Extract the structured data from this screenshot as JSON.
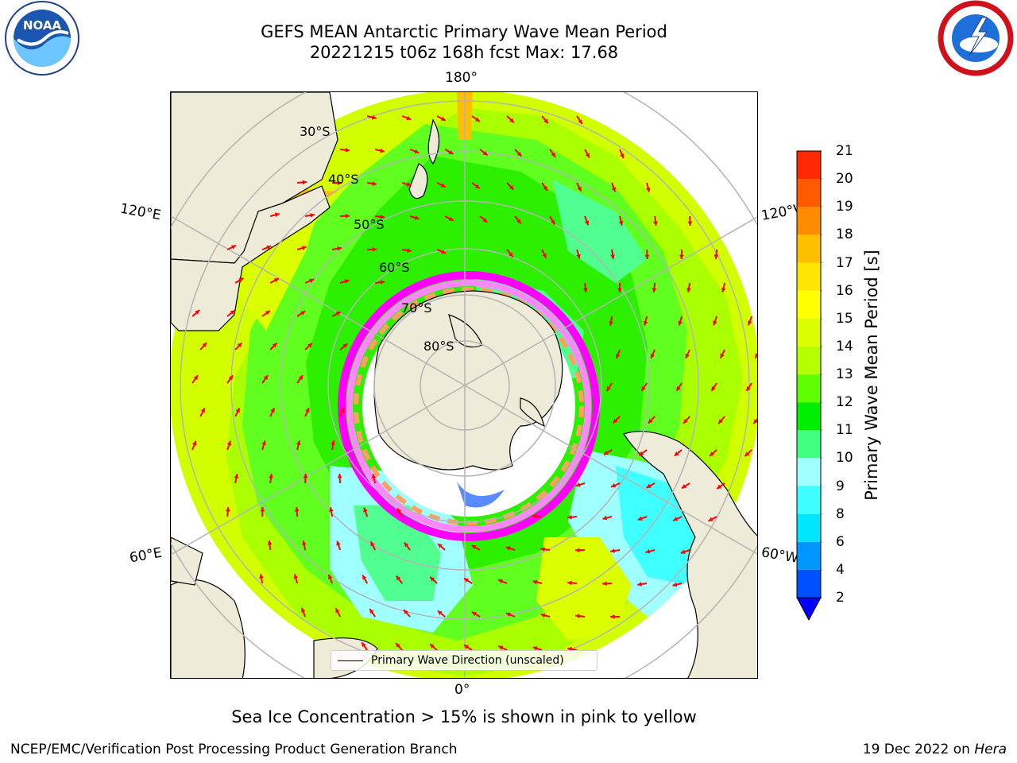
{
  "title": {
    "line1": "GEFS MEAN Antarctic Primary Wave Mean Period",
    "line2": "20221215 t06z 168h fcst   Max: 17.68"
  },
  "logos": {
    "left": {
      "icon": "noaa-logo",
      "text": "NOAA"
    },
    "right": {
      "icon": "nws-logo"
    }
  },
  "map": {
    "projection": "south-polar-stereographic",
    "lon_labels": {
      "top": "180°",
      "bottom": "0°",
      "upper_left": "120°E",
      "upper_right": "120°W",
      "lower_left": "60°E",
      "lower_right": "60°W"
    },
    "lat_labels": [
      "30°S",
      "40°S",
      "50°S",
      "60°S",
      "70°S",
      "80°S"
    ],
    "legend": "Primary Wave Direction (unscaled)",
    "arrow_color": "#ff0000",
    "land_color": "#efebd9",
    "ice_colors": [
      "#ff00ff",
      "#ff88ff",
      "#ffa060",
      "#ffff80",
      "#ffffff"
    ]
  },
  "colorbar": {
    "label": "Primary Wave Mean Period [s]",
    "ticks": [
      "2",
      "4",
      "6",
      "8",
      "9",
      "10",
      "11",
      "12",
      "13",
      "14",
      "15",
      "16",
      "17",
      "18",
      "19",
      "20",
      "21"
    ],
    "colors": [
      "#0050ff",
      "#0096ff",
      "#00e6ff",
      "#40ffff",
      "#a0ffff",
      "#40ff80",
      "#00ee00",
      "#60ff00",
      "#b4ff00",
      "#dcff00",
      "#ffff00",
      "#ffe600",
      "#ffbe00",
      "#ff8c00",
      "#ff5a00",
      "#ff2800"
    ],
    "under_color": "#0000ff"
  },
  "subtitle": "Sea Ice Concentration > 15% is shown in pink to yellow",
  "footer": {
    "left": "NCEP/EMC/Verification Post Processing Product Generation Branch",
    "right_date": "19 Dec 2022 on",
    "right_machine": "Hera"
  }
}
